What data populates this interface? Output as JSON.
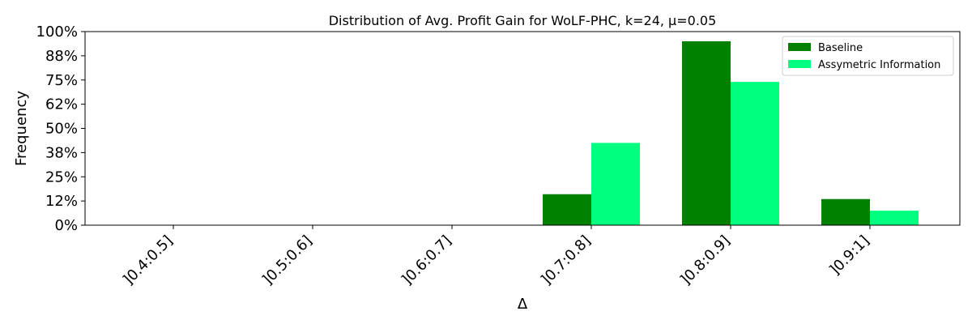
{
  "chart_data": {
    "type": "bar",
    "title": "Distribution of Avg. Profit Gain for WoLF-PHC, k=24, μ=0.05",
    "xlabel": "Δ",
    "ylabel": "Frequency",
    "categories": [
      "]0.4:0.5]",
      "]0.5:0.6]",
      "]0.6:0.7]",
      "]0.7:0.8]",
      "]0.8:0.9]",
      "]0.9:1]"
    ],
    "series": [
      {
        "name": "Baseline",
        "color": "#008000",
        "values": [
          0,
          0,
          0,
          0.16,
          0.95,
          0.135
        ]
      },
      {
        "name": "Assymetric Information",
        "color": "#00ff7f",
        "values": [
          0,
          0,
          0,
          0.425,
          0.74,
          0.075
        ]
      }
    ],
    "ylim": [
      0,
      1
    ],
    "yticks": [
      0,
      0.125,
      0.25,
      0.375,
      0.5,
      0.625,
      0.75,
      0.875,
      1.0
    ],
    "ytick_labels": [
      "0%",
      "12%",
      "25%",
      "38%",
      "50%",
      "62%",
      "75%",
      "88%",
      "100%"
    ],
    "legend_position": "top-right",
    "grid": false
  }
}
